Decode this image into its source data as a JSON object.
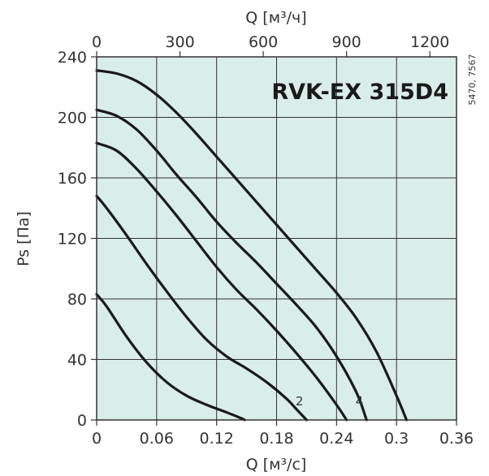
{
  "chart_data": {
    "type": "line",
    "title": "RVK-EX 315D4",
    "side_code": "5470, 7567",
    "xlabel": "Q [м³/с]",
    "x2label": "Q [м³/ч]",
    "ylabel": "Ps [Па]",
    "xlim": [
      0,
      0.36
    ],
    "x2lim": [
      0,
      1296
    ],
    "ylim": [
      0,
      240
    ],
    "xticks": [
      "0",
      "0.06",
      "0.12",
      "0.18",
      "0.24",
      "0.3",
      "0.36"
    ],
    "x2ticks": [
      "0",
      "300",
      "600",
      "900",
      "1200"
    ],
    "yticks": [
      "0",
      "40",
      "80",
      "120",
      "160",
      "200",
      "240"
    ],
    "grid": true,
    "background_color": "#d9ede9",
    "grid_color": "#333333",
    "curve_color": "#1a1a1a",
    "series": [
      {
        "label": "",
        "x": [
          0,
          0.01,
          0.03,
          0.05,
          0.07,
          0.09,
          0.11,
          0.13,
          0.145,
          0.148
        ],
        "y": [
          83,
          75,
          55,
          38,
          25,
          16,
          10,
          5,
          1,
          0
        ]
      },
      {
        "label": "2",
        "x": [
          0,
          0.01,
          0.03,
          0.05,
          0.07,
          0.09,
          0.11,
          0.13,
          0.15,
          0.17,
          0.19,
          0.2,
          0.21
        ],
        "y": [
          148,
          140,
          122,
          103,
          85,
          68,
          53,
          42,
          34,
          25,
          14,
          7,
          0
        ]
      },
      {
        "label": "",
        "x": [
          0,
          0.02,
          0.04,
          0.06,
          0.08,
          0.1,
          0.12,
          0.14,
          0.16,
          0.18,
          0.2,
          0.22,
          0.24,
          0.25
        ],
        "y": [
          183,
          178,
          166,
          151,
          135,
          118,
          101,
          86,
          73,
          59,
          44,
          28,
          10,
          0
        ]
      },
      {
        "label": "4",
        "x": [
          0,
          0.02,
          0.04,
          0.06,
          0.08,
          0.1,
          0.12,
          0.14,
          0.16,
          0.18,
          0.2,
          0.22,
          0.24,
          0.26,
          0.27
        ],
        "y": [
          205,
          201,
          192,
          178,
          162,
          147,
          131,
          117,
          104,
          90,
          76,
          61,
          42,
          18,
          0
        ]
      },
      {
        "label": "",
        "x": [
          0,
          0.02,
          0.04,
          0.06,
          0.08,
          0.1,
          0.12,
          0.14,
          0.16,
          0.18,
          0.2,
          0.22,
          0.24,
          0.26,
          0.28,
          0.3,
          0.31
        ],
        "y": [
          231,
          229,
          224,
          215,
          203,
          189,
          174,
          159,
          144,
          129,
          114,
          99,
          84,
          67,
          45,
          16,
          0
        ]
      }
    ]
  }
}
